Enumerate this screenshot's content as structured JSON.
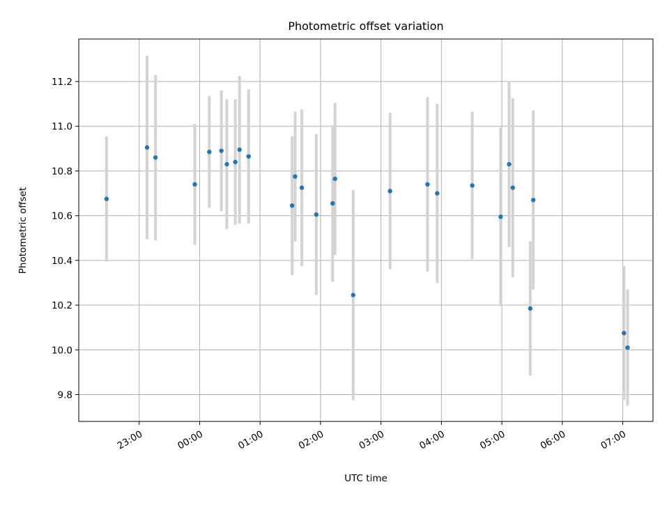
{
  "chart_data": {
    "type": "scatter",
    "title": "Photometric offset variation",
    "xlabel": "UTC time",
    "ylabel": "Photometric offset",
    "grid": true,
    "colors": {
      "point": "#1f77b4",
      "errorbar": "#d3d3d3",
      "grid": "#b0b0b0"
    },
    "x_unit": "hours since 00:00 UTC (negative = previous day)",
    "xlim": [
      -2.0,
      7.5
    ],
    "ylim": [
      9.68,
      11.39
    ],
    "xticks": [
      {
        "hour": -1,
        "label": "23:00"
      },
      {
        "hour": 0,
        "label": "00:00"
      },
      {
        "hour": 1,
        "label": "01:00"
      },
      {
        "hour": 2,
        "label": "02:00"
      },
      {
        "hour": 3,
        "label": "03:00"
      },
      {
        "hour": 4,
        "label": "04:00"
      },
      {
        "hour": 5,
        "label": "05:00"
      },
      {
        "hour": 6,
        "label": "06:00"
      },
      {
        "hour": 7,
        "label": "07:00"
      }
    ],
    "yticks": [
      {
        "value": 9.8,
        "label": "9.8"
      },
      {
        "value": 10.0,
        "label": "10.0"
      },
      {
        "value": 10.2,
        "label": "10.2"
      },
      {
        "value": 10.4,
        "label": "10.4"
      },
      {
        "value": 10.6,
        "label": "10.6"
      },
      {
        "value": 10.8,
        "label": "10.8"
      },
      {
        "value": 11.0,
        "label": "11.0"
      },
      {
        "value": 11.2,
        "label": "11.2"
      }
    ],
    "points": [
      {
        "time": "22:28",
        "hour": -1.54,
        "y": 10.675,
        "err": 0.28
      },
      {
        "time": "23:07",
        "hour": -0.87,
        "y": 10.905,
        "err": 0.41
      },
      {
        "time": "23:16",
        "hour": -0.73,
        "y": 10.86,
        "err": 0.37
      },
      {
        "time": "23:55",
        "hour": -0.08,
        "y": 10.74,
        "err": 0.27
      },
      {
        "time": "00:10",
        "hour": 0.16,
        "y": 10.885,
        "err": 0.25
      },
      {
        "time": "00:21",
        "hour": 0.36,
        "y": 10.89,
        "err": 0.27
      },
      {
        "time": "00:27",
        "hour": 0.45,
        "y": 10.83,
        "err": 0.29
      },
      {
        "time": "00:36",
        "hour": 0.59,
        "y": 10.84,
        "err": 0.28
      },
      {
        "time": "00:40",
        "hour": 0.66,
        "y": 10.895,
        "err": 0.33
      },
      {
        "time": "00:49",
        "hour": 0.81,
        "y": 10.865,
        "err": 0.3
      },
      {
        "time": "01:32",
        "hour": 1.53,
        "y": 10.645,
        "err": 0.31
      },
      {
        "time": "01:35",
        "hour": 1.58,
        "y": 10.775,
        "err": 0.29
      },
      {
        "time": "01:41",
        "hour": 1.69,
        "y": 10.725,
        "err": 0.35
      },
      {
        "time": "01:56",
        "hour": 1.93,
        "y": 10.605,
        "err": 0.36
      },
      {
        "time": "02:12",
        "hour": 2.2,
        "y": 10.655,
        "err": 0.35
      },
      {
        "time": "02:14",
        "hour": 2.24,
        "y": 10.765,
        "err": 0.34
      },
      {
        "time": "02:32",
        "hour": 2.54,
        "y": 10.245,
        "err": 0.47
      },
      {
        "time": "03:09",
        "hour": 3.15,
        "y": 10.71,
        "err": 0.35
      },
      {
        "time": "03:46",
        "hour": 3.77,
        "y": 10.74,
        "err": 0.39
      },
      {
        "time": "03:56",
        "hour": 3.93,
        "y": 10.7,
        "err": 0.4
      },
      {
        "time": "04:31",
        "hour": 4.51,
        "y": 10.735,
        "err": 0.33
      },
      {
        "time": "04:59",
        "hour": 4.98,
        "y": 10.595,
        "err": 0.4
      },
      {
        "time": "05:07",
        "hour": 5.12,
        "y": 10.83,
        "err": 0.37
      },
      {
        "time": "05:11",
        "hour": 5.18,
        "y": 10.725,
        "err": 0.4
      },
      {
        "time": "05:28",
        "hour": 5.47,
        "y": 10.185,
        "err": 0.3
      },
      {
        "time": "05:31",
        "hour": 5.52,
        "y": 10.67,
        "err": 0.4
      },
      {
        "time": "07:01",
        "hour": 7.02,
        "y": 10.075,
        "err": 0.3
      },
      {
        "time": "07:05",
        "hour": 7.08,
        "y": 10.01,
        "err": 0.26
      }
    ]
  }
}
